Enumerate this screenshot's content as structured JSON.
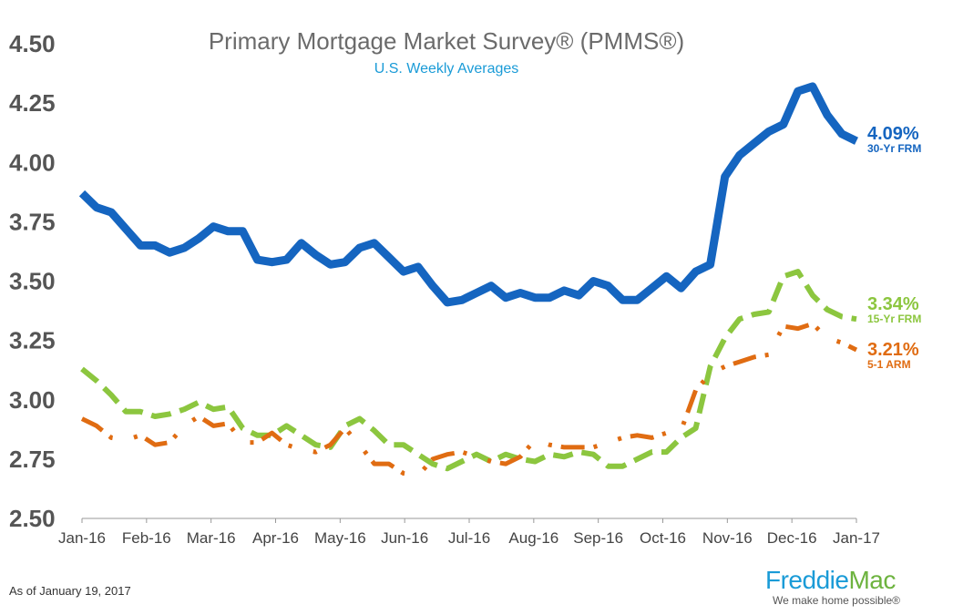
{
  "chart_data": {
    "type": "line",
    "title": "Primary Mortgage Market Survey® (PMMS®)",
    "subtitle": "U.S. Weekly Averages",
    "x_tick_labels": [
      "Jan-16",
      "Feb-16",
      "Mar-16",
      "Apr-16",
      "May-16",
      "Jun-16",
      "Jul-16",
      "Aug-16",
      "Sep-16",
      "Oct-16",
      "Nov-16",
      "Dec-16",
      "Jan-17"
    ],
    "y_tick_labels": [
      "4.50",
      "4.25",
      "4.00",
      "3.75",
      "3.50",
      "3.25",
      "3.00",
      "2.75",
      "2.50"
    ],
    "ylim": [
      2.5,
      4.5
    ],
    "grid": false,
    "series": [
      {
        "name": "30-Yr FRM",
        "end_label": "4.09%",
        "color": "#1565c0",
        "style": "solid",
        "values": [
          3.87,
          3.81,
          3.79,
          3.72,
          3.65,
          3.65,
          3.62,
          3.64,
          3.68,
          3.73,
          3.71,
          3.71,
          3.59,
          3.58,
          3.59,
          3.66,
          3.61,
          3.57,
          3.58,
          3.64,
          3.66,
          3.6,
          3.54,
          3.56,
          3.48,
          3.41,
          3.42,
          3.45,
          3.48,
          3.43,
          3.45,
          3.43,
          3.43,
          3.46,
          3.44,
          3.5,
          3.48,
          3.42,
          3.42,
          3.47,
          3.52,
          3.47,
          3.54,
          3.57,
          3.94,
          4.03,
          4.08,
          4.13,
          4.16,
          4.3,
          4.32,
          4.2,
          4.12,
          4.09
        ]
      },
      {
        "name": "15-Yr FRM",
        "end_label": "3.34%",
        "color": "#8cc63f",
        "style": "dashed",
        "values": [
          3.13,
          3.08,
          3.02,
          2.95,
          2.95,
          2.93,
          2.94,
          2.96,
          2.99,
          2.96,
          2.97,
          2.88,
          2.85,
          2.85,
          2.89,
          2.85,
          2.81,
          2.8,
          2.89,
          2.92,
          2.87,
          2.81,
          2.81,
          2.77,
          2.73,
          2.71,
          2.74,
          2.77,
          2.74,
          2.77,
          2.75,
          2.74,
          2.77,
          2.76,
          2.78,
          2.77,
          2.72,
          2.72,
          2.75,
          2.78,
          2.78,
          2.84,
          2.88,
          3.14,
          3.26,
          3.34,
          3.36,
          3.37,
          3.52,
          3.54,
          3.44,
          3.38,
          3.35,
          3.34
        ]
      },
      {
        "name": "5-1 ARM",
        "end_label": "3.21%",
        "color": "#e06c12",
        "style": "mixed",
        "values": [
          2.92,
          2.89,
          2.84,
          2.83,
          2.85,
          2.81,
          2.82,
          2.89,
          2.93,
          2.89,
          2.9,
          2.82,
          2.82,
          2.86,
          2.81,
          2.79,
          2.78,
          2.81,
          2.88,
          2.81,
          2.73,
          2.73,
          2.69,
          2.68,
          2.75,
          2.77,
          2.78,
          2.76,
          2.74,
          2.73,
          2.76,
          2.83,
          2.81,
          2.8,
          2.8,
          2.8,
          2.82,
          2.84,
          2.85,
          2.84,
          2.86,
          2.87,
          3.04,
          3.11,
          3.14,
          3.16,
          3.18,
          3.19,
          3.31,
          3.3,
          3.32,
          3.26,
          3.24,
          3.21
        ]
      }
    ]
  },
  "footer": {
    "as_of": "As of January 19, 2017"
  },
  "logo": {
    "name_part1": "Freddie",
    "name_part2": "Mac",
    "tagline": "We make home possible®"
  }
}
